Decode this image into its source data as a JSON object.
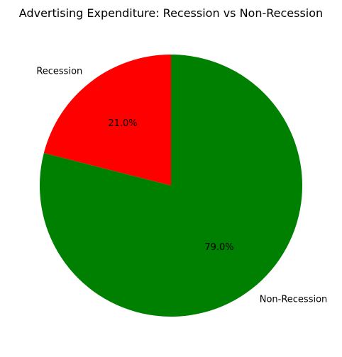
{
  "chart_data": {
    "type": "pie",
    "title": "Advertising Expenditure: Recession vs Non-Recession",
    "start_angle_deg": 90,
    "direction": "counterclockwise",
    "slices": [
      {
        "label": "Recession",
        "value": 21.0,
        "pct_label": "21.0%",
        "color": "#ff0000"
      },
      {
        "label": "Non-Recession",
        "value": 79.0,
        "pct_label": "79.0%",
        "color": "#008000"
      }
    ]
  }
}
